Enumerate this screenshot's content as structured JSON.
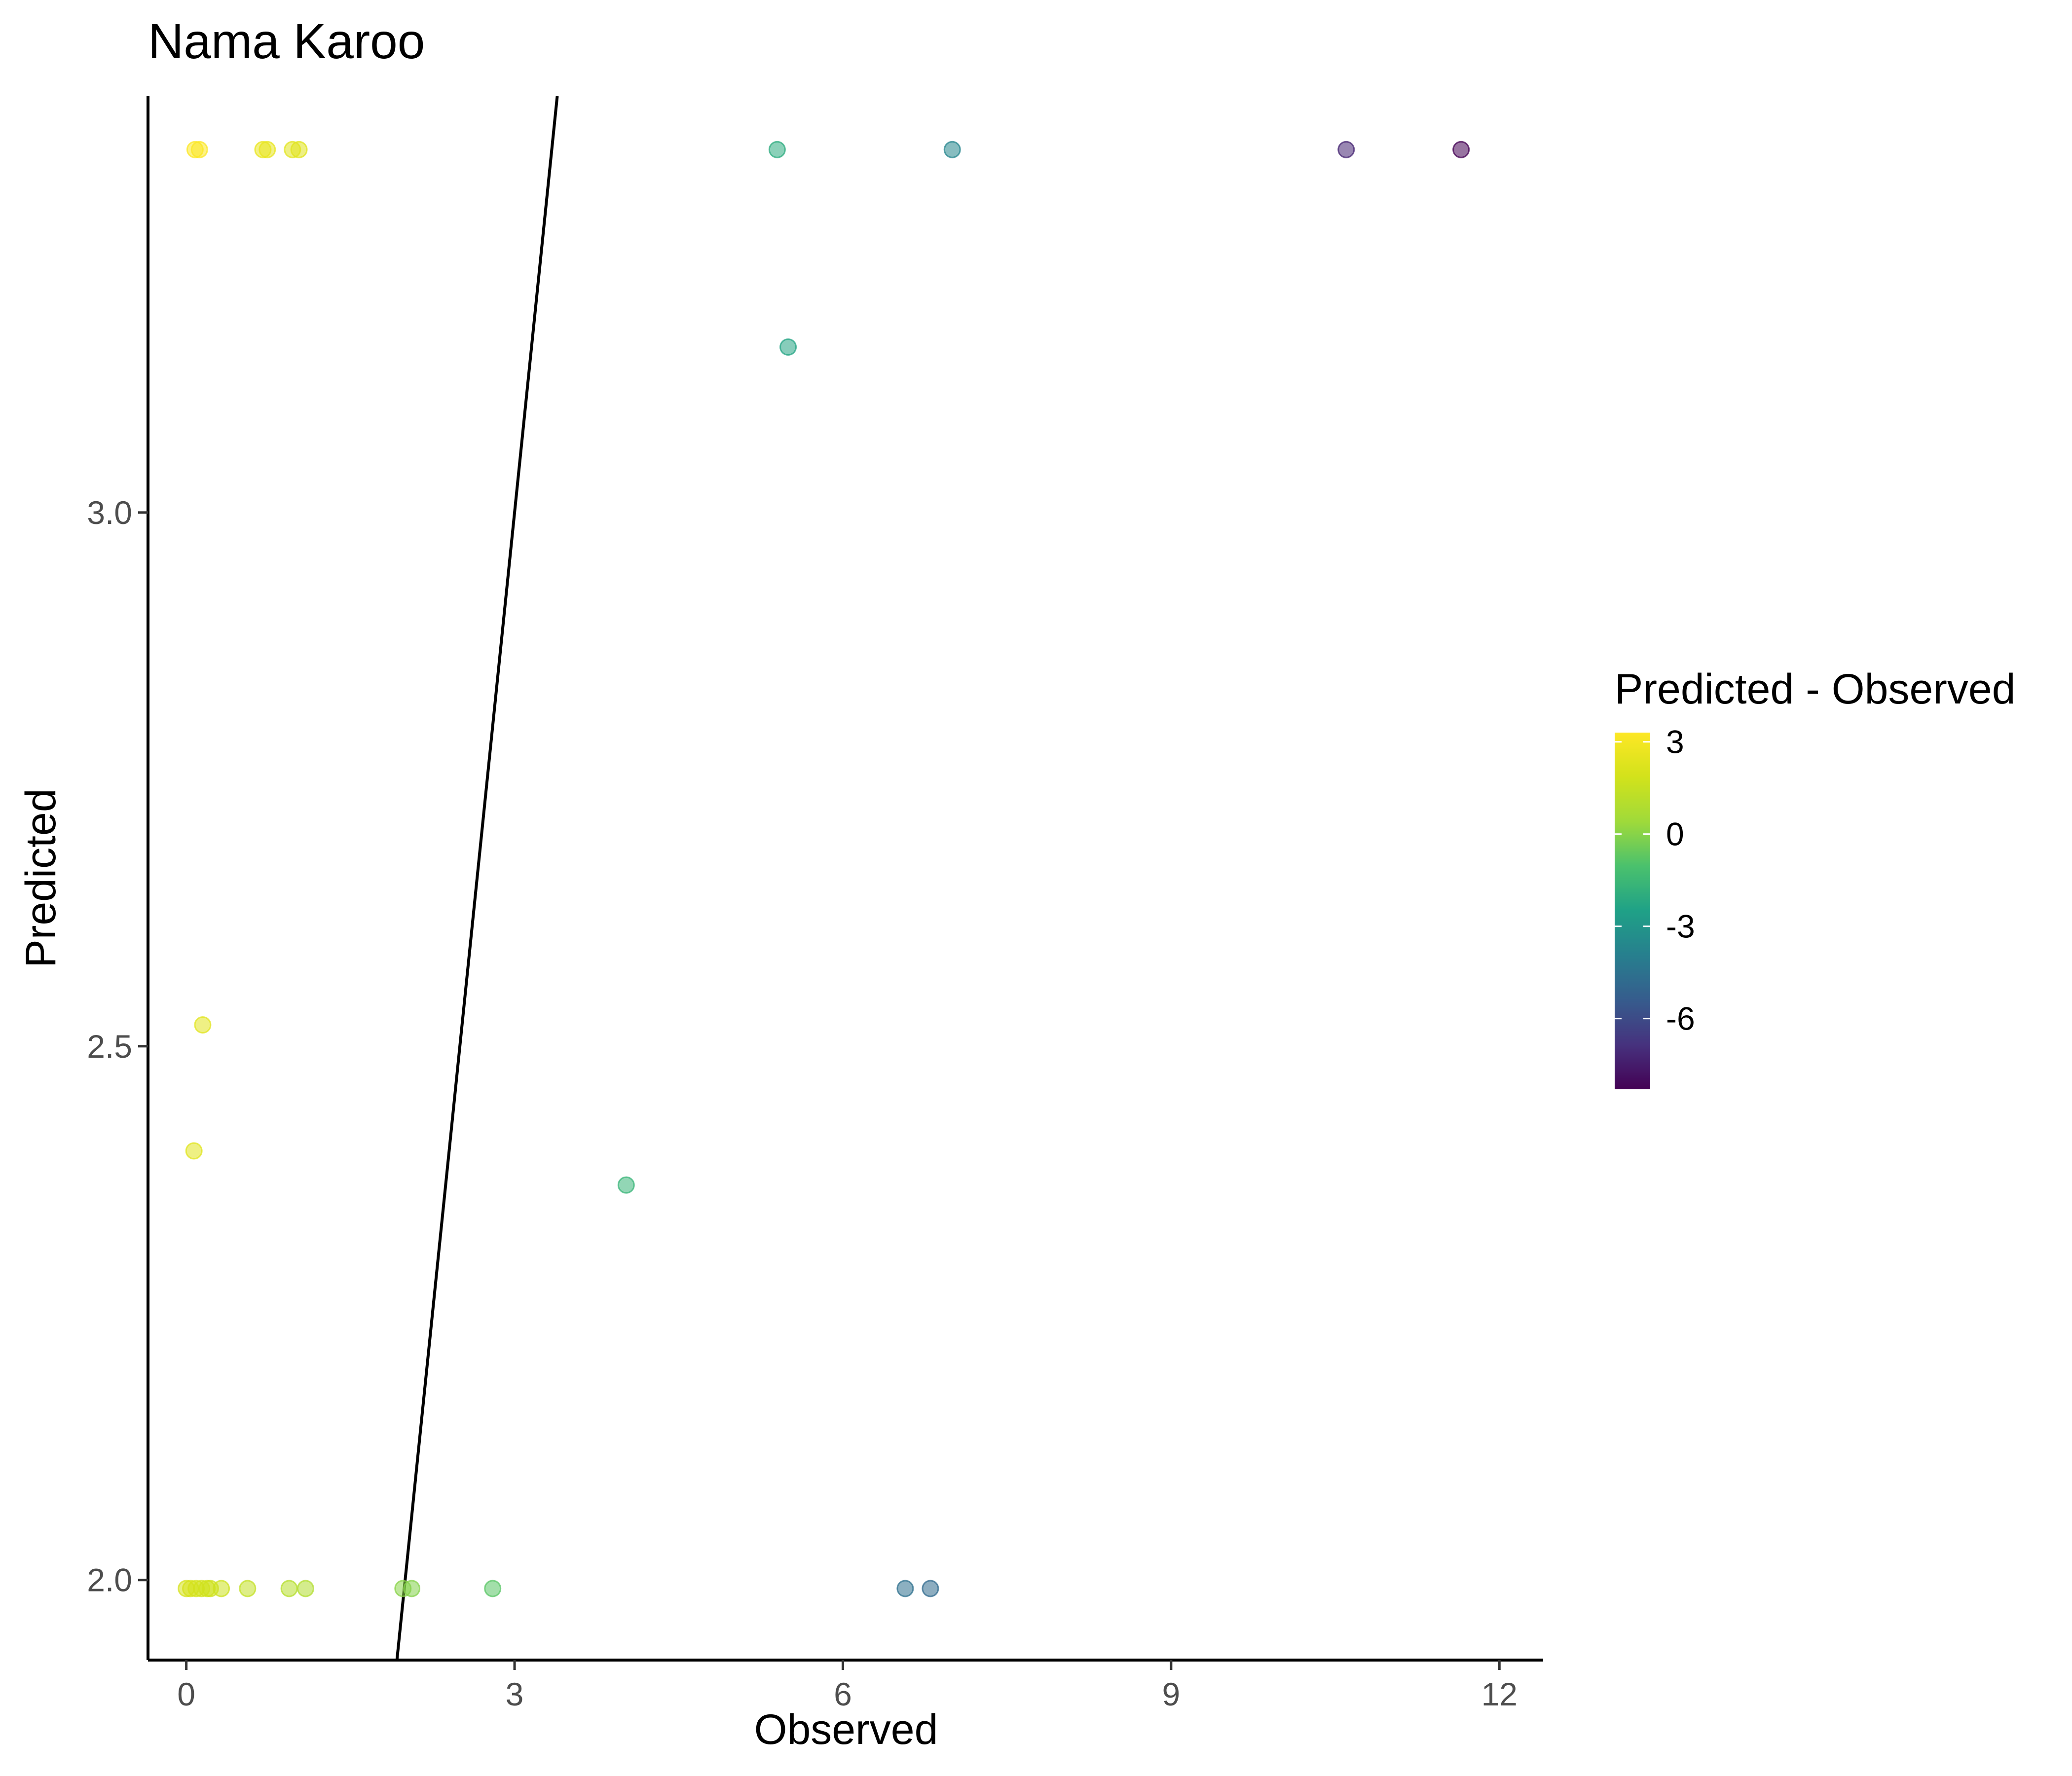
{
  "chart_data": {
    "type": "scatter",
    "title": "Nama Karoo",
    "xlabel": "Observed",
    "ylabel": "Predicted",
    "xlim": [
      -0.35,
      12.4
    ],
    "ylim": [
      1.925,
      3.39
    ],
    "x_ticks": [
      0,
      3,
      6,
      9,
      12
    ],
    "x_tick_labels": [
      "0",
      "3",
      "6",
      "9",
      "12"
    ],
    "y_ticks": [
      2.0,
      2.5,
      3.0
    ],
    "y_tick_labels": [
      "2.0",
      "2.5",
      "3.0"
    ],
    "grid": false,
    "reference_line": {
      "type": "identity",
      "slope": 1,
      "intercept": 0
    },
    "color_legend": {
      "title": "Predicted - Observed",
      "palette": "viridis",
      "limits": [
        -8.3,
        3.3
      ],
      "ticks": [
        3,
        0,
        -3,
        -6
      ],
      "tick_labels": [
        "3",
        "0",
        "-3",
        "-6"
      ],
      "placement": "right"
    },
    "points": [
      {
        "x": 0.08,
        "y": 3.34
      },
      {
        "x": 0.12,
        "y": 3.34
      },
      {
        "x": 0.7,
        "y": 3.34
      },
      {
        "x": 0.74,
        "y": 3.34
      },
      {
        "x": 0.97,
        "y": 3.34
      },
      {
        "x": 1.03,
        "y": 3.34
      },
      {
        "x": 5.4,
        "y": 3.34
      },
      {
        "x": 7.0,
        "y": 3.34
      },
      {
        "x": 10.6,
        "y": 3.34
      },
      {
        "x": 11.65,
        "y": 3.34
      },
      {
        "x": 5.5,
        "y": 3.155
      },
      {
        "x": 0.15,
        "y": 2.52
      },
      {
        "x": 0.07,
        "y": 2.402
      },
      {
        "x": 4.02,
        "y": 2.37
      },
      {
        "x": 0.0,
        "y": 1.992
      },
      {
        "x": 0.04,
        "y": 1.992
      },
      {
        "x": 0.09,
        "y": 1.992
      },
      {
        "x": 0.14,
        "y": 1.992
      },
      {
        "x": 0.19,
        "y": 1.992
      },
      {
        "x": 0.22,
        "y": 1.992
      },
      {
        "x": 0.32,
        "y": 1.992
      },
      {
        "x": 0.56,
        "y": 1.992
      },
      {
        "x": 0.94,
        "y": 1.992
      },
      {
        "x": 1.09,
        "y": 1.992
      },
      {
        "x": 1.98,
        "y": 1.992
      },
      {
        "x": 2.06,
        "y": 1.992
      },
      {
        "x": 2.8,
        "y": 1.992
      },
      {
        "x": 6.57,
        "y": 1.992
      },
      {
        "x": 6.8,
        "y": 1.992
      }
    ]
  }
}
